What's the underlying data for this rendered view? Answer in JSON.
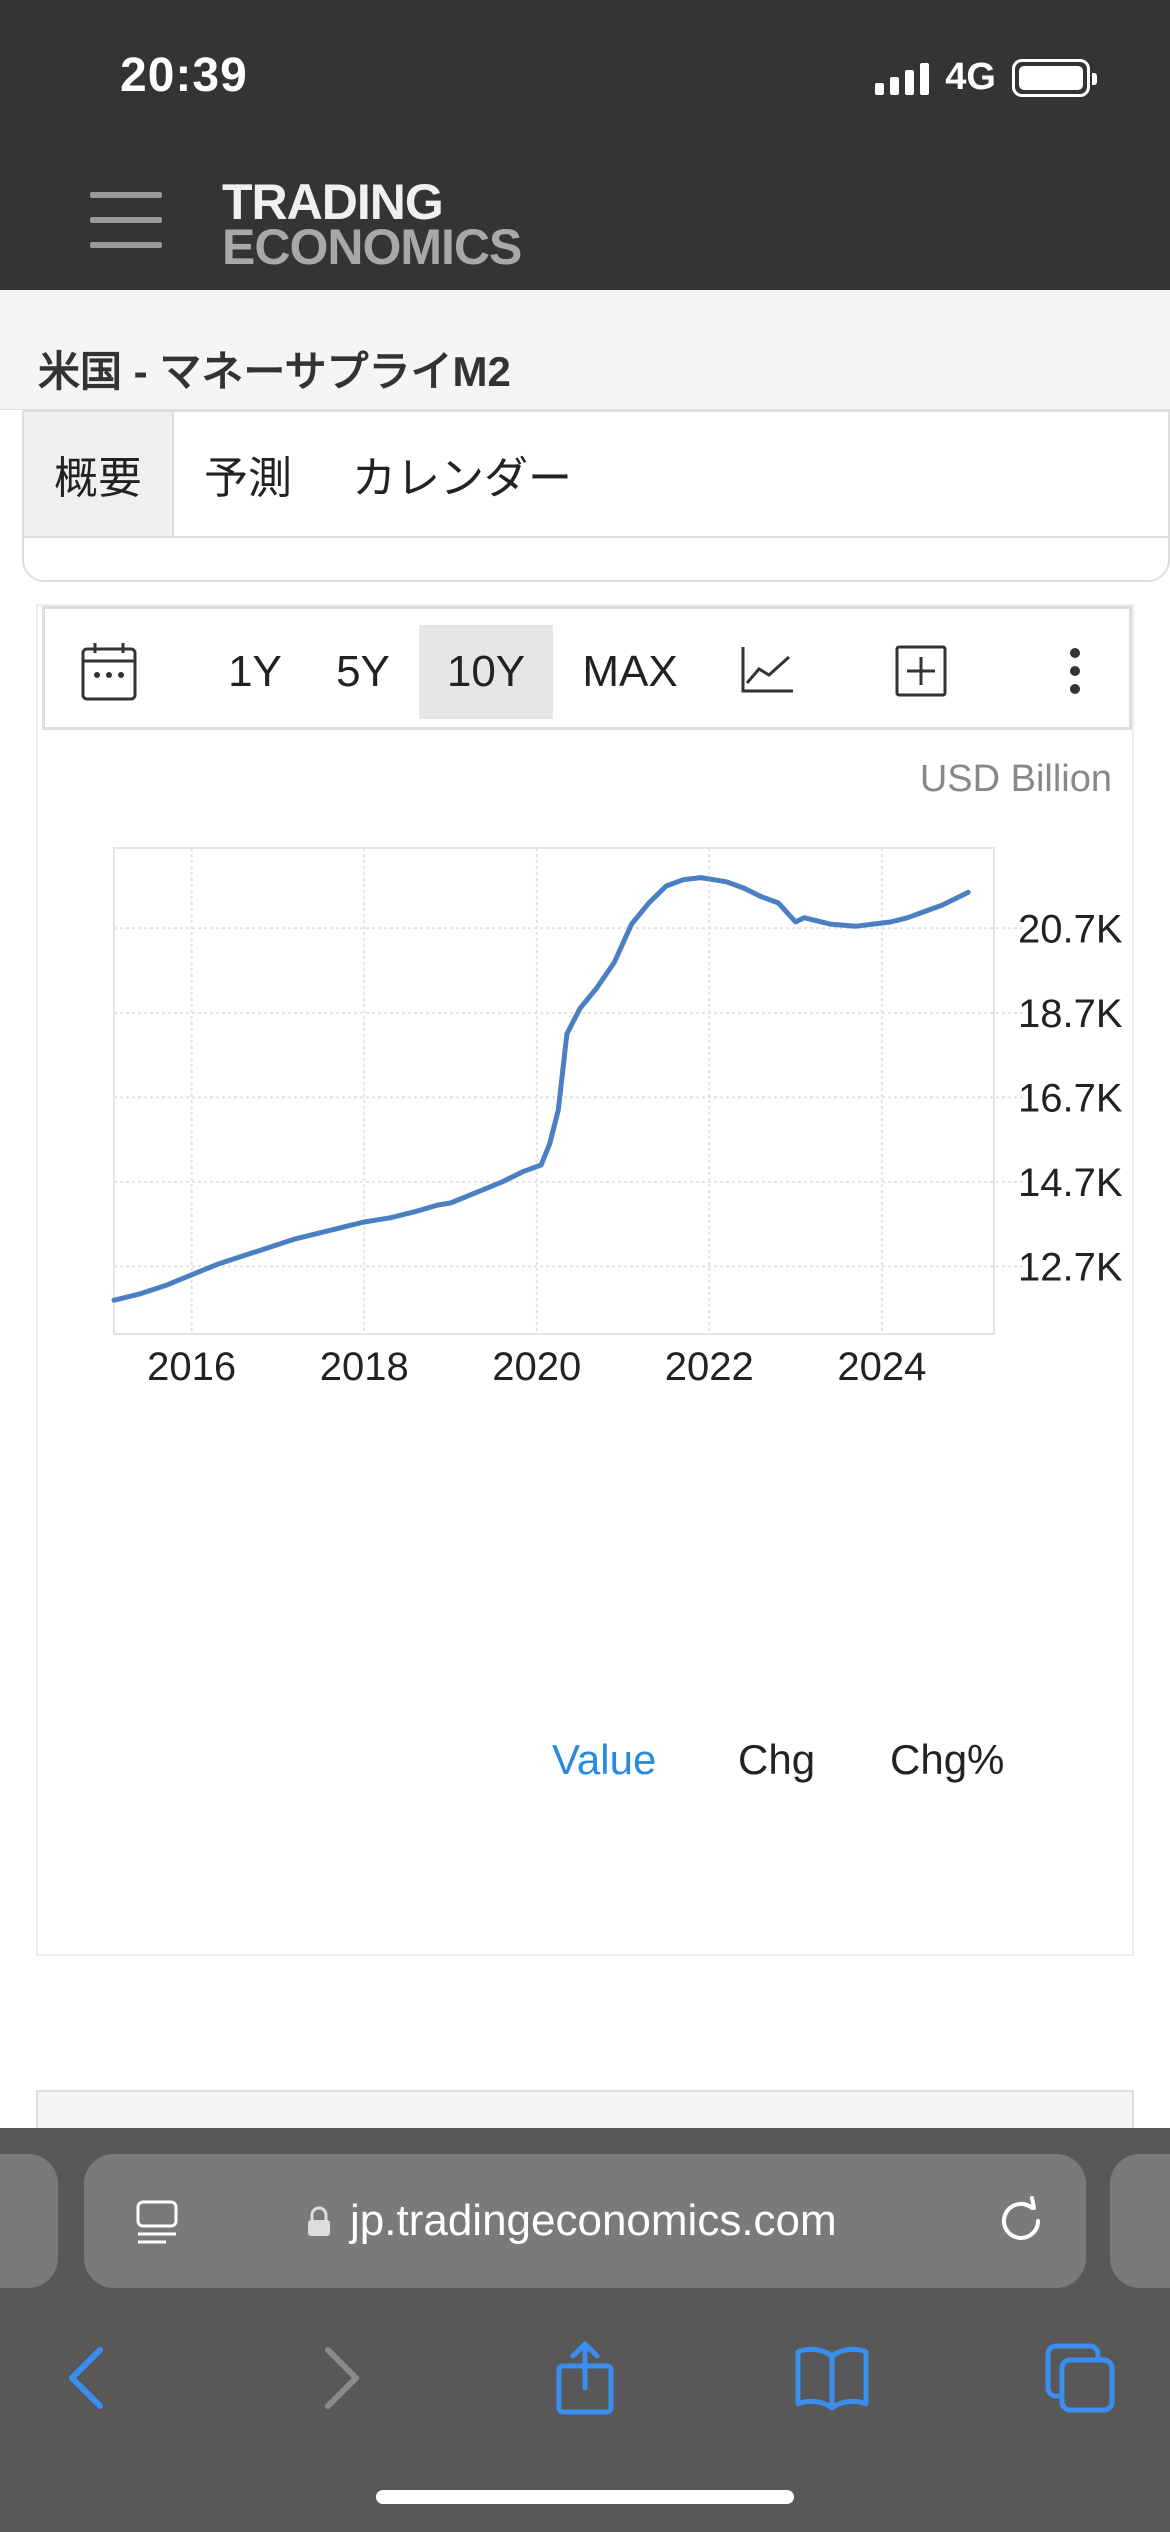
{
  "status_bar": {
    "time": "20:39",
    "network": "4G",
    "signal_bars": 4,
    "battery_level": 1.0
  },
  "header": {
    "menu_icon": "hamburger-icon",
    "logo_line1": "TRADING",
    "logo_line2": "ECONOMICS"
  },
  "page": {
    "title": "米国 - マネーサプライM2"
  },
  "tabs": [
    {
      "label": "概要",
      "active": true
    },
    {
      "label": "予測",
      "active": false
    },
    {
      "label": "カレンダー",
      "active": false
    }
  ],
  "toolbar": {
    "calendar_icon": "calendar-icon",
    "ranges": [
      {
        "label": "1Y",
        "active": false
      },
      {
        "label": "5Y",
        "active": false
      },
      {
        "label": "10Y",
        "active": true
      },
      {
        "label": "MAX",
        "active": false
      }
    ],
    "chart_type_icon": "line-chart-icon",
    "add_icon": "plus-square-icon",
    "more_icon": "more-vertical-icon"
  },
  "chart_data": {
    "type": "line",
    "unit": "USD Billion",
    "x_ticks": [
      "2016",
      "2018",
      "2020",
      "2022",
      "2024"
    ],
    "y_ticks": [
      "12.7K",
      "14.7K",
      "16.7K",
      "18.7K",
      "20.7K"
    ],
    "y_tick_values": [
      12700,
      14700,
      16700,
      18700,
      20700
    ],
    "xlim": [
      2015.1,
      2025.3
    ],
    "ylim": [
      11100,
      22600
    ],
    "grid": true,
    "y_axis_position": "right",
    "series": [
      {
        "color": "#4a7fc1",
        "x": [
          2015.1,
          2015.4,
          2015.7,
          2016.0,
          2016.3,
          2016.6,
          2016.9,
          2017.2,
          2017.5,
          2017.8,
          2018.0,
          2018.3,
          2018.6,
          2018.85,
          2019.0,
          2019.3,
          2019.6,
          2019.85,
          2020.05,
          2020.15,
          2020.25,
          2020.35,
          2020.5,
          2020.7,
          2020.9,
          2021.1,
          2021.3,
          2021.5,
          2021.7,
          2021.9,
          2022.05,
          2022.2,
          2022.4,
          2022.6,
          2022.8,
          2023.0,
          2023.1,
          2023.2,
          2023.4,
          2023.7,
          2023.9,
          2024.1,
          2024.3,
          2024.5,
          2024.7,
          2024.85,
          2025.0
        ],
        "values": [
          11900,
          12050,
          12250,
          12500,
          12750,
          12950,
          13150,
          13350,
          13500,
          13650,
          13750,
          13850,
          14000,
          14150,
          14200,
          14450,
          14700,
          14950,
          15100,
          15600,
          16400,
          18200,
          18800,
          19300,
          19900,
          20800,
          21300,
          21700,
          21850,
          21900,
          21850,
          21800,
          21650,
          21450,
          21300,
          20850,
          20950,
          20900,
          20800,
          20750,
          20800,
          20850,
          20950,
          21100,
          21250,
          21400,
          21550
        ]
      }
    ]
  },
  "series_tabs": [
    {
      "label": "Value",
      "active": true
    },
    {
      "label": "Chg",
      "active": false
    },
    {
      "label": "Chg%",
      "active": false
    }
  ],
  "browser": {
    "url": "jp.tradingeconomics.com",
    "reader_icon": "reader-mode-icon",
    "lock_icon": "lock-icon",
    "reload_icon": "reload-icon",
    "nav": [
      "back-icon",
      "forward-icon",
      "share-icon",
      "bookmarks-icon",
      "tabs-icon"
    ]
  }
}
